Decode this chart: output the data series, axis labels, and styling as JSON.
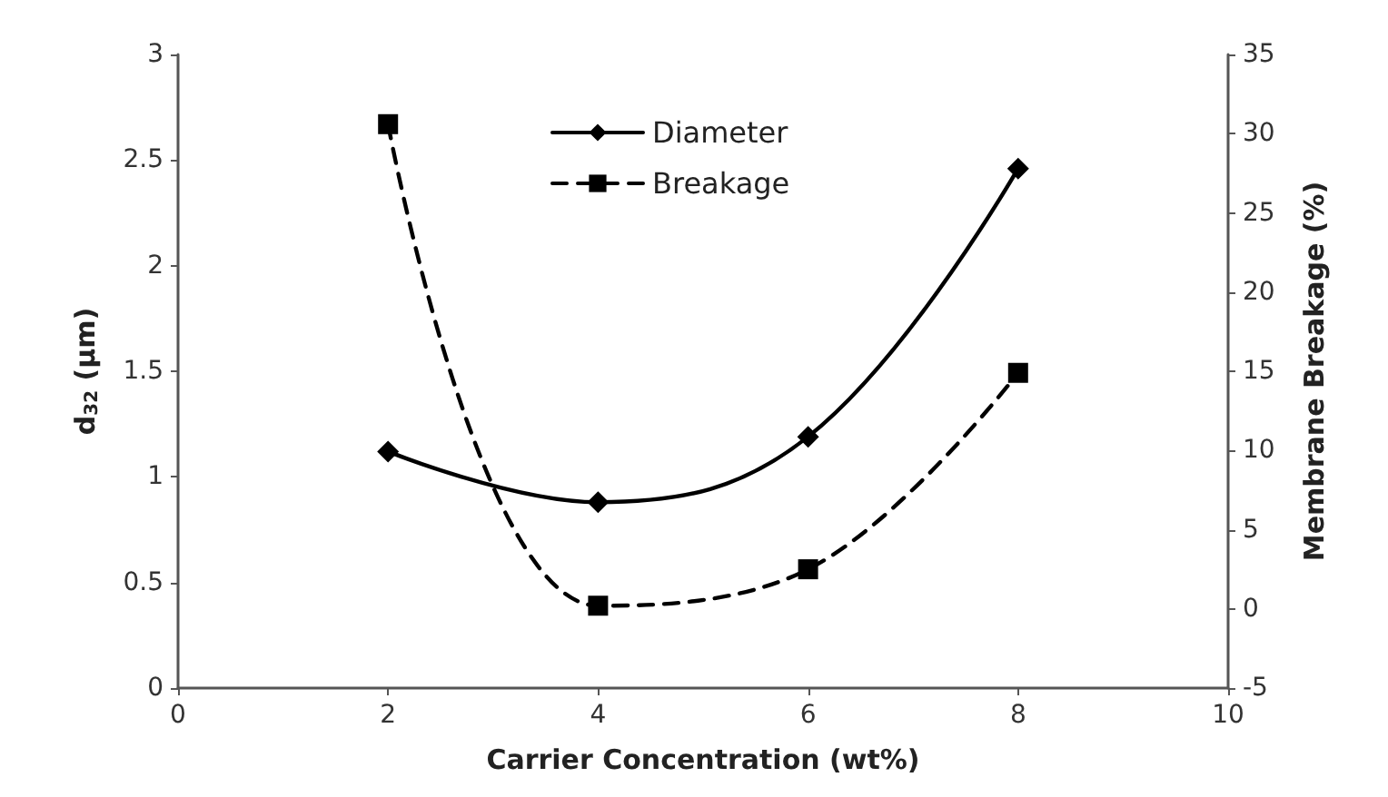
{
  "chart_data": {
    "type": "line",
    "xlabel": "Carrier Concentration (wt%)",
    "ylabel": "d$_{32}$ (µm)",
    "y2label": "Membrane Breakage (%)",
    "x": [
      2,
      4,
      6,
      8
    ],
    "series": [
      {
        "name": "Diameter",
        "color": "#000000",
        "values": [
          1.12,
          0.88,
          1.19,
          2.46
        ],
        "marker": "diamond",
        "line_style": "solid"
      },
      {
        "name": "Breakage",
        "color": "#000000",
        "values": [
          30.6,
          0.2,
          2.5,
          14.9
        ],
        "marker": "square",
        "line_style": "dashed",
        "axis": "y2"
      }
    ],
    "xlim": [
      0,
      10
    ],
    "xticks": [
      0,
      2,
      4,
      6,
      8,
      10
    ],
    "ylim": [
      0,
      3
    ],
    "yticks": [
      0,
      0.5,
      1,
      1.5,
      2,
      2.5,
      3
    ],
    "y2lim": [
      -5,
      35
    ],
    "y2ticks": [
      -5,
      0,
      5,
      10,
      15,
      20,
      25,
      30,
      35
    ],
    "grid": false,
    "legend": "top"
  }
}
